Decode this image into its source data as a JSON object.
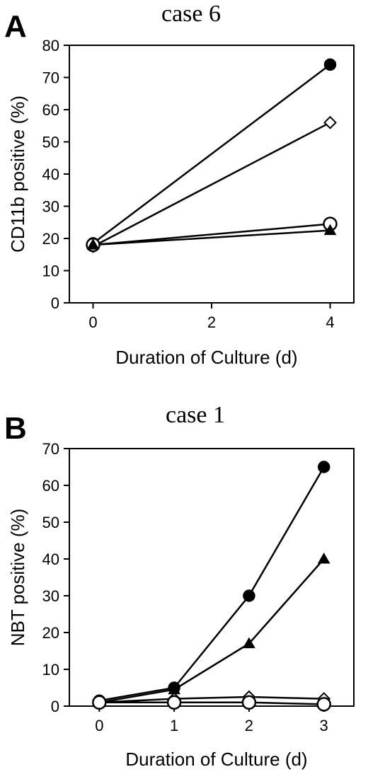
{
  "chart_data": [
    {
      "panel_label": "A",
      "title": "case 6",
      "type": "line",
      "xlabel": "Duration of Culture (d)",
      "ylabel": "CD11b positive (%)",
      "xlim": [
        -0.4,
        4.4
      ],
      "ylim": [
        0,
        80
      ],
      "xticks": [
        0,
        2,
        4
      ],
      "yticks": [
        0,
        10,
        20,
        30,
        40,
        50,
        60,
        70,
        80
      ],
      "grid": false,
      "legend": "none",
      "series": [
        {
          "marker": "filled-circle",
          "x": [
            0,
            4
          ],
          "values": [
            18.5,
            74
          ]
        },
        {
          "marker": "open-diamond",
          "x": [
            0,
            4
          ],
          "values": [
            17.5,
            56
          ]
        },
        {
          "marker": "open-circle",
          "x": [
            0,
            4
          ],
          "values": [
            18,
            24.5
          ]
        },
        {
          "marker": "filled-triangle",
          "x": [
            0,
            4
          ],
          "values": [
            18,
            22.5
          ]
        }
      ]
    },
    {
      "panel_label": "B",
      "title": "case 1",
      "type": "line",
      "xlabel": "Duration of Culture (d)",
      "ylabel": "NBT positive (%)",
      "xlim": [
        -0.4,
        3.4
      ],
      "ylim": [
        0,
        70
      ],
      "xticks": [
        0,
        1,
        2,
        3
      ],
      "yticks": [
        0,
        10,
        20,
        30,
        40,
        50,
        60,
        70
      ],
      "grid": false,
      "legend": "none",
      "series": [
        {
          "marker": "filled-circle",
          "x": [
            0,
            1,
            2,
            3
          ],
          "values": [
            1.5,
            5,
            30,
            65
          ]
        },
        {
          "marker": "filled-triangle",
          "x": [
            0,
            1,
            2,
            3
          ],
          "values": [
            1,
            4.5,
            17,
            40
          ]
        },
        {
          "marker": "open-diamond",
          "x": [
            0,
            1,
            2,
            3
          ],
          "values": [
            1,
            2,
            2.5,
            2
          ]
        },
        {
          "marker": "open-circle",
          "x": [
            0,
            1,
            2,
            3
          ],
          "values": [
            1,
            1,
            1,
            0.5
          ]
        }
      ]
    }
  ]
}
